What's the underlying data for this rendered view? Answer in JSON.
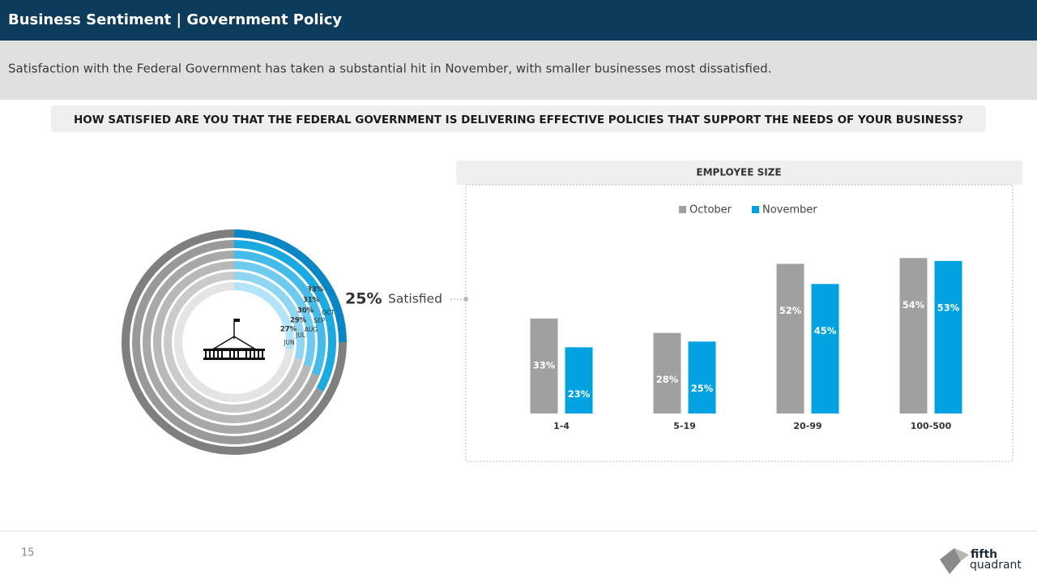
{
  "header": {
    "title": "Business Sentiment | Government Policy",
    "subtitle": "Satisfaction with the Federal Government has taken a substantial hit in November, with smaller businesses most dissatisfied."
  },
  "question": "HOW SATISFIED ARE YOU THAT THE FEDERAL GOVERNMENT IS DELIVERING EFFECTIVE POLICIES THAT SUPPORT THE NEEDS OF YOUR BUSINESS?",
  "chart_data": [
    {
      "type": "radial",
      "categories": [
        null,
        "OCT",
        "SEP",
        "AUG",
        "JUL",
        "JUN"
      ],
      "values": [
        25,
        33,
        31,
        30,
        29,
        27
      ],
      "value_labels": [
        "25%",
        "33%",
        "31%",
        "30%",
        "29%",
        "27%"
      ],
      "annotation": "Satisfied",
      "colors": [
        "#0a86c4",
        "#1ba9e1",
        "#45bbea",
        "#6fcaf0",
        "#90d6f3",
        "#b4e4f8"
      ],
      "track_colors": [
        "#7f7f7f",
        "#999999",
        "#a8a8a8",
        "#b8b8b8",
        "#cacaca",
        "#e4e4e4"
      ]
    },
    {
      "type": "bar",
      "title": "EMPLOYEE SIZE",
      "categories": [
        "1-4",
        "5-19",
        "20-99",
        "100-500"
      ],
      "series": [
        {
          "name": "October",
          "color": "#a0a0a0",
          "values": [
            33,
            28,
            52,
            54
          ],
          "value_labels": [
            "33%",
            "28%",
            "52%",
            "54%"
          ]
        },
        {
          "name": "November",
          "color": "#00a3e0",
          "values": [
            23,
            25,
            45,
            53
          ],
          "value_labels": [
            "23%",
            "25%",
            "45%",
            "53%"
          ]
        }
      ],
      "legend": "top"
    }
  ],
  "footer": {
    "page_number": 15,
    "logo": [
      "fifth",
      "quadrant"
    ]
  }
}
